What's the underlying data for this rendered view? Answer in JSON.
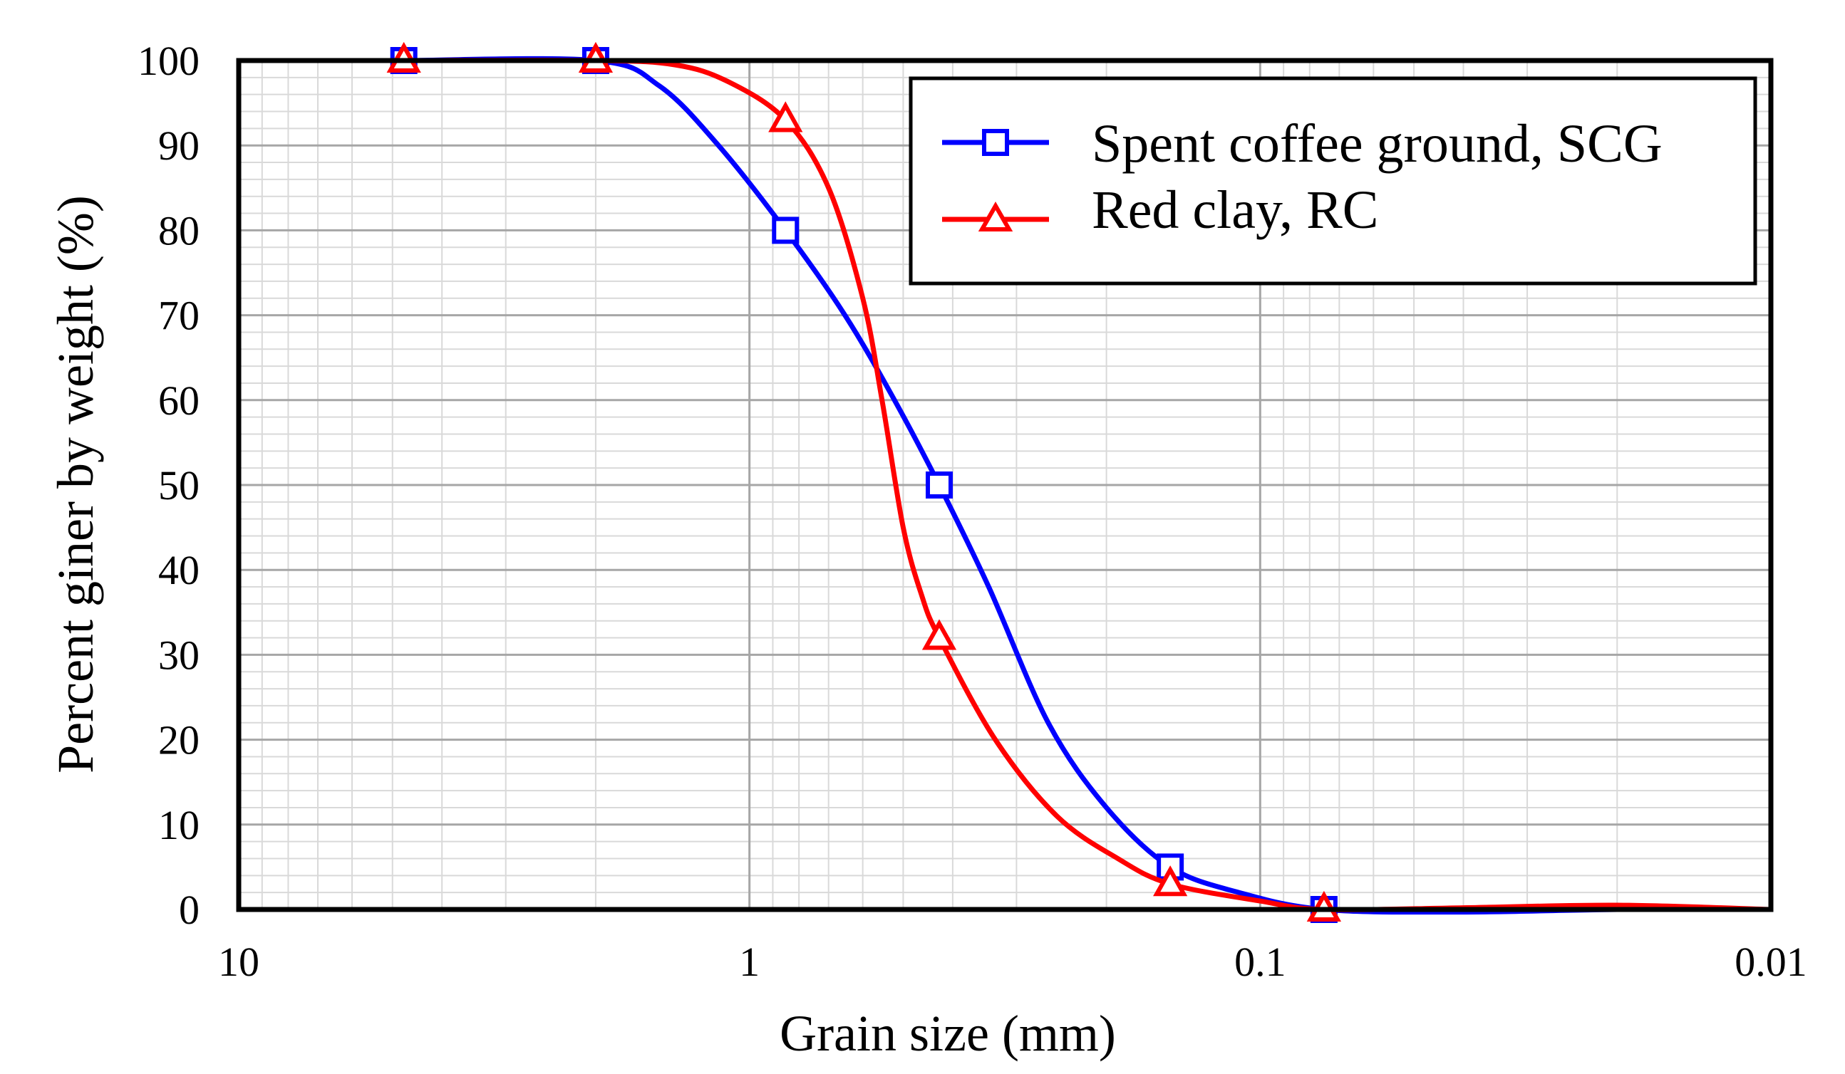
{
  "chart_data": {
    "type": "line",
    "title": "",
    "xlabel": "Grain size (mm)",
    "ylabel": "Percent giner by weight (%)",
    "xscale": "log",
    "x_reversed": true,
    "xlim": [
      10,
      0.01
    ],
    "ylim": [
      0,
      100
    ],
    "x_ticks": [
      {
        "value": 10,
        "label": "10"
      },
      {
        "value": 1,
        "label": "1"
      },
      {
        "value": 0.1,
        "label": "0.1"
      },
      {
        "value": 0.01,
        "label": "0.01"
      }
    ],
    "y_ticks": [
      {
        "value": 0,
        "label": "0"
      },
      {
        "value": 10,
        "label": "10"
      },
      {
        "value": 20,
        "label": "20"
      },
      {
        "value": 30,
        "label": "30"
      },
      {
        "value": 40,
        "label": "40"
      },
      {
        "value": 50,
        "label": "50"
      },
      {
        "value": 60,
        "label": "60"
      },
      {
        "value": 70,
        "label": "70"
      },
      {
        "value": 80,
        "label": "80"
      },
      {
        "value": 90,
        "label": "90"
      },
      {
        "value": 100,
        "label": "100"
      }
    ],
    "grid": true,
    "legend_position": "top-right",
    "series": [
      {
        "name": "Spent coffee ground, SCG",
        "color": "#0000ff",
        "marker": "square",
        "x": [
          4.75,
          2.0,
          0.85,
          0.425,
          0.15,
          0.075,
          0.01
        ],
        "y": [
          100,
          100,
          80,
          50,
          5,
          0,
          0
        ],
        "curve": [
          [
            4.75,
            100
          ],
          [
            2.0,
            100
          ],
          [
            1.5,
            97
          ],
          [
            1.15,
            90
          ],
          [
            0.85,
            80
          ],
          [
            0.65,
            70
          ],
          [
            0.52,
            60
          ],
          [
            0.425,
            50
          ],
          [
            0.34,
            38
          ],
          [
            0.26,
            22
          ],
          [
            0.2,
            12
          ],
          [
            0.15,
            5
          ],
          [
            0.11,
            2
          ],
          [
            0.075,
            0
          ],
          [
            0.04,
            -0.3
          ],
          [
            0.02,
            0
          ],
          [
            0.01,
            0
          ]
        ]
      },
      {
        "name": "Red clay, RC",
        "color": "#ff0000",
        "marker": "triangle",
        "x": [
          4.75,
          2.0,
          0.85,
          0.425,
          0.15,
          0.075,
          0.01
        ],
        "y": [
          100,
          100,
          93,
          32,
          3,
          0,
          0
        ],
        "curve": [
          [
            4.75,
            100
          ],
          [
            2.0,
            100
          ],
          [
            1.4,
            99.5
          ],
          [
            1.1,
            97.5
          ],
          [
            0.85,
            93
          ],
          [
            0.7,
            85
          ],
          [
            0.6,
            72
          ],
          [
            0.55,
            60
          ],
          [
            0.5,
            45
          ],
          [
            0.46,
            37
          ],
          [
            0.425,
            32
          ],
          [
            0.33,
            20
          ],
          [
            0.25,
            11
          ],
          [
            0.19,
            6
          ],
          [
            0.15,
            3
          ],
          [
            0.1,
            1
          ],
          [
            0.075,
            0
          ],
          [
            0.04,
            0.2
          ],
          [
            0.02,
            0.5
          ],
          [
            0.01,
            0
          ]
        ]
      }
    ]
  }
}
